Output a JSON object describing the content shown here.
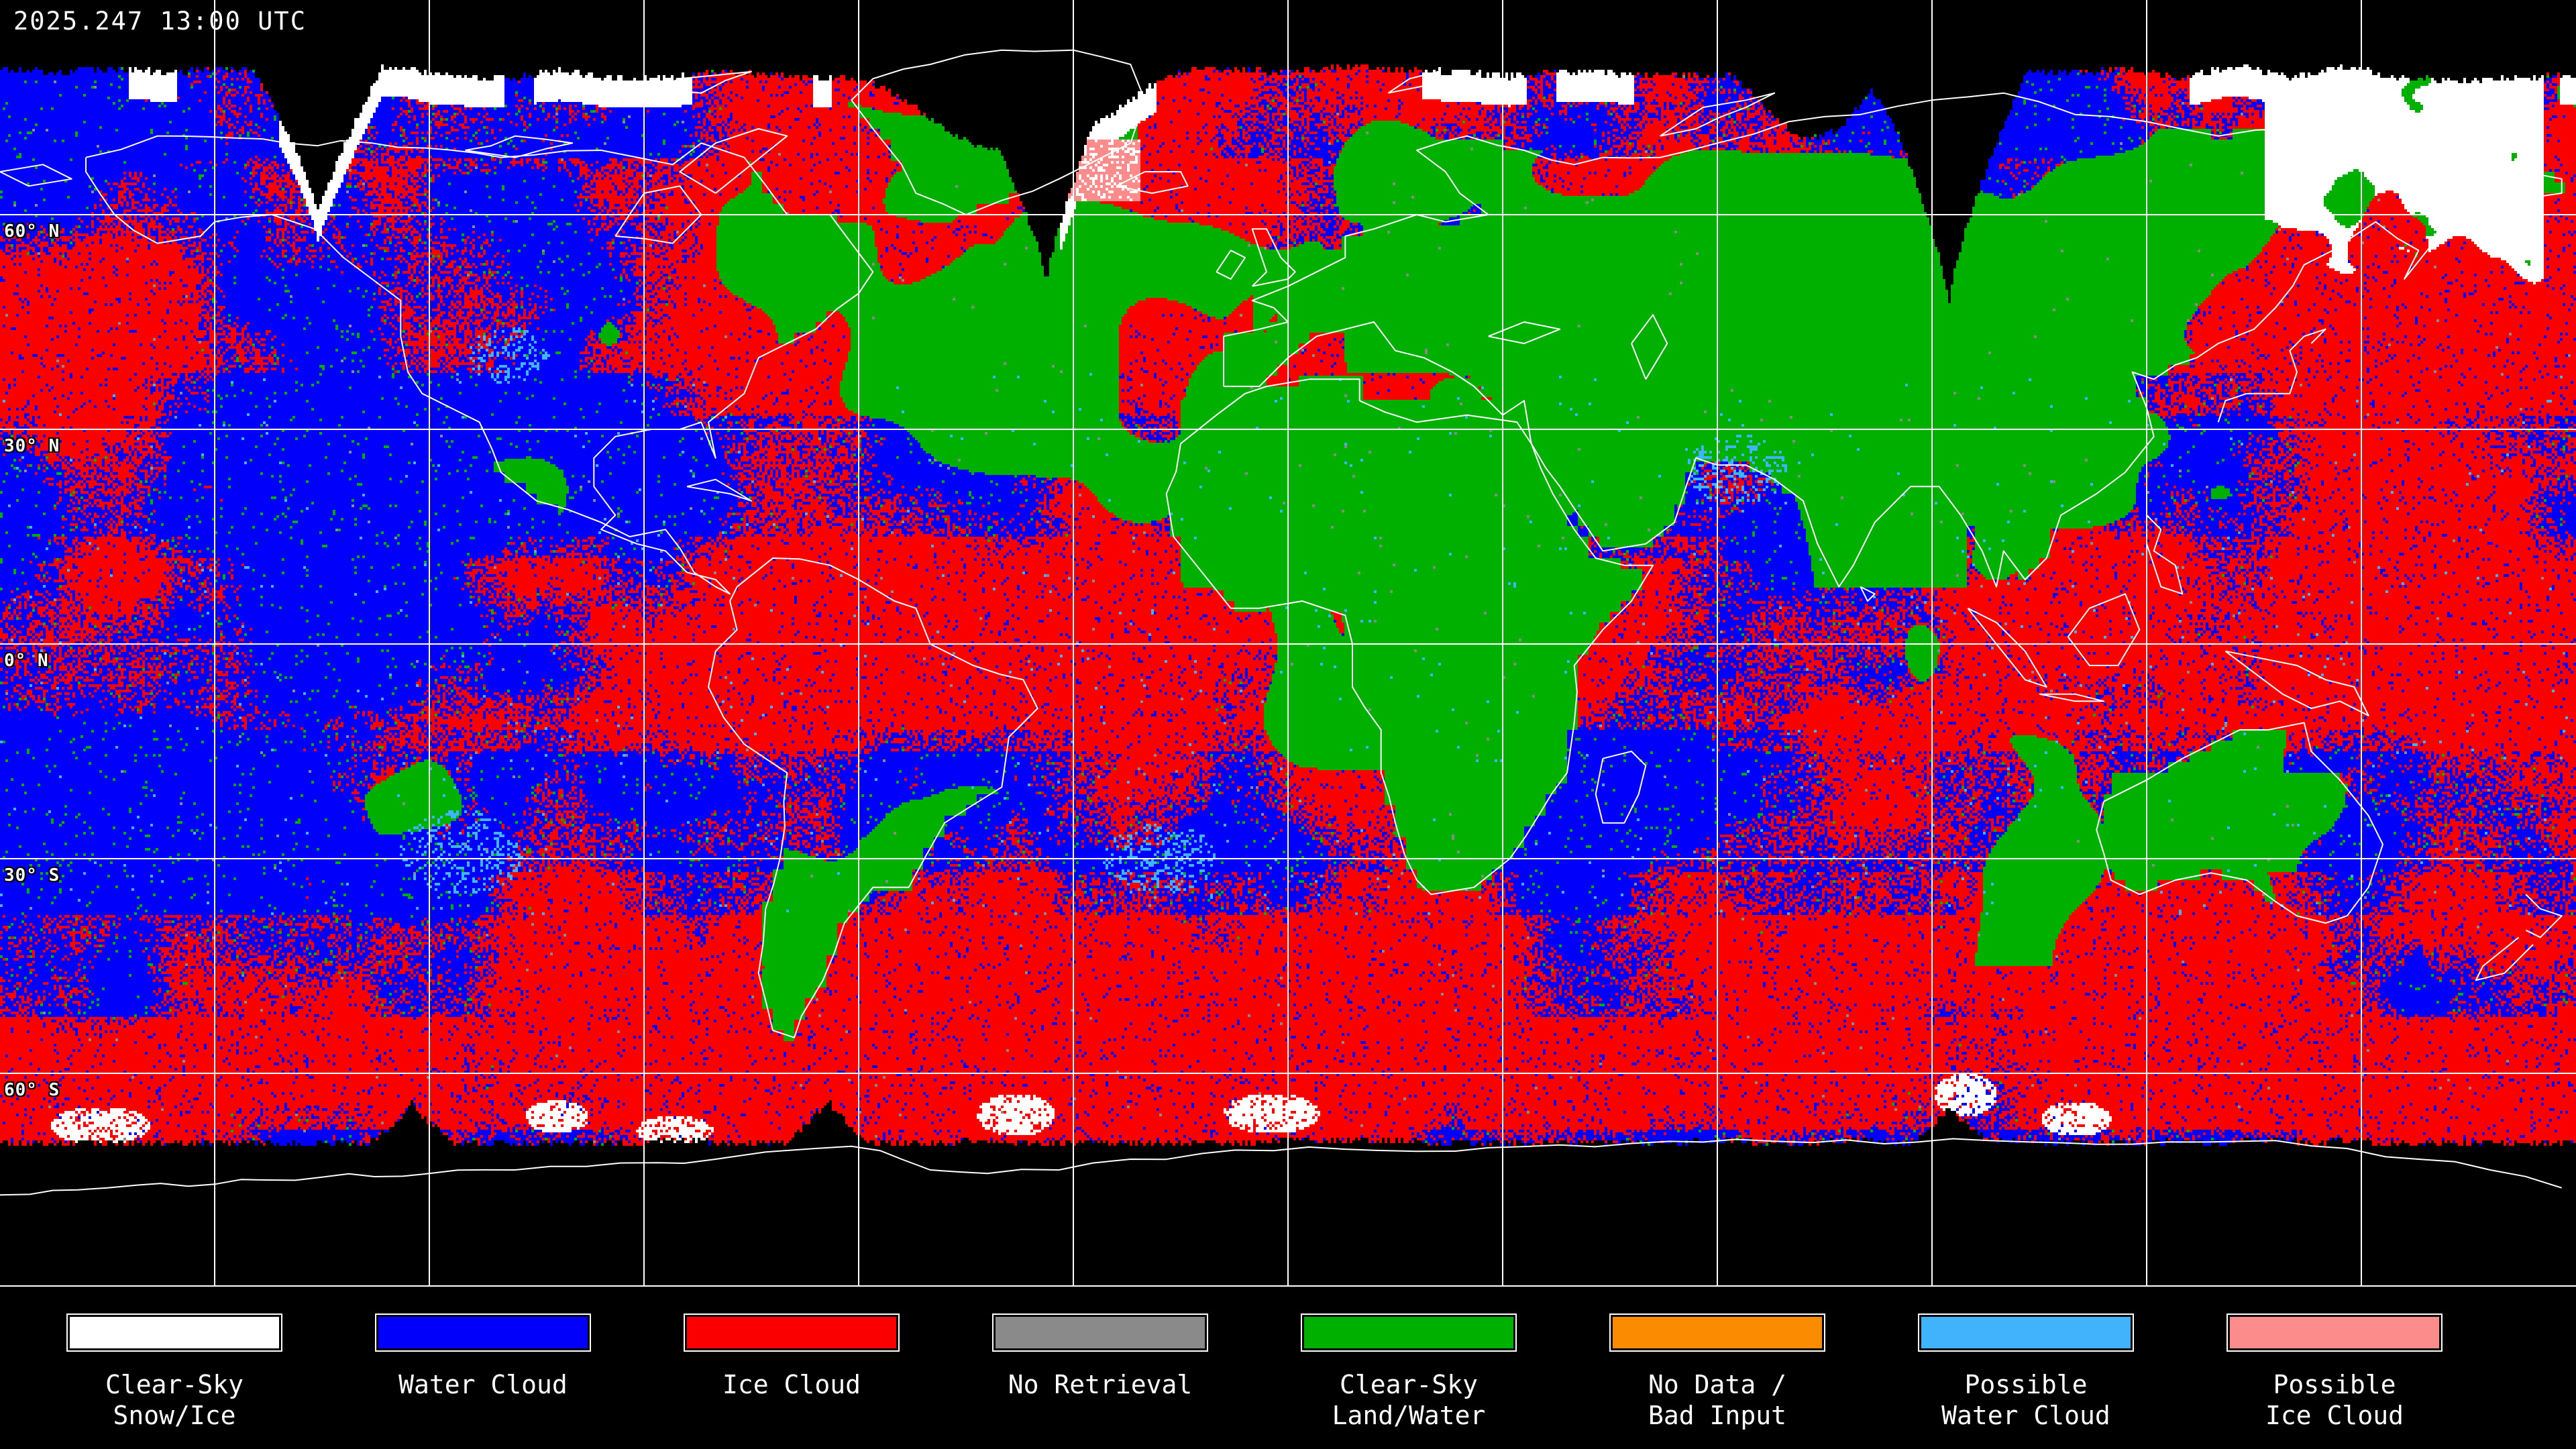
{
  "header": {
    "timestamp": "2025.247 13:00 UTC"
  },
  "map": {
    "projection": "equirectangular",
    "grid_spacing_deg": 30,
    "colors": {
      "background": "#000000",
      "gridlines": "#ffffff",
      "coastlines": "#ffffff",
      "text": "#ffffff"
    },
    "latitude_labels": [
      {
        "text": "60° N",
        "lat": 60
      },
      {
        "text": "30° N",
        "lat": 30
      },
      {
        "text": "0° N",
        "lat": 0
      },
      {
        "text": "30° S",
        "lat": -30
      },
      {
        "text": "60° S",
        "lat": -60
      }
    ]
  },
  "legend": {
    "items": [
      {
        "id": "clear-sky-snow-ice",
        "color": "#ffffff",
        "label_lines": [
          "Clear-Sky",
          "Snow/Ice"
        ]
      },
      {
        "id": "water-cloud",
        "color": "#0000fb",
        "label_lines": [
          "Water Cloud"
        ]
      },
      {
        "id": "ice-cloud",
        "color": "#fb0000",
        "label_lines": [
          "Ice Cloud"
        ]
      },
      {
        "id": "no-retrieval",
        "color": "#8a8a8a",
        "label_lines": [
          "No Retrieval"
        ]
      },
      {
        "id": "clear-sky-land-water",
        "color": "#00b000",
        "label_lines": [
          "Clear-Sky",
          "Land/Water"
        ]
      },
      {
        "id": "no-data-bad-input",
        "color": "#fb8b00",
        "label_lines": [
          "No Data /",
          "Bad Input"
        ]
      },
      {
        "id": "possible-water-cloud",
        "color": "#41b2fc",
        "label_lines": [
          "Possible",
          "Water Cloud"
        ]
      },
      {
        "id": "possible-ice-cloud",
        "color": "#fc8b8b",
        "label_lines": [
          "Possible",
          "Ice Cloud"
        ]
      }
    ]
  }
}
